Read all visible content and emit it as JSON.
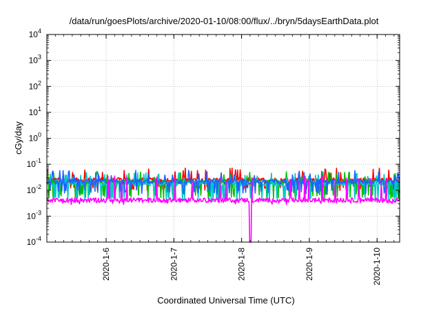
{
  "chart_data": {
    "type": "line",
    "title": "/data/run/goesPlots/archive/2020-01-10/08:00/flux/../bryn/5daysEarthData.plot",
    "xlabel": "Coordinated Universal Time (UTC)",
    "ylabel": "cGy/day",
    "yscale": "log",
    "ylim": [
      0.0001,
      10000
    ],
    "xlim": [
      "2020-01-05T03:00",
      "2020-01-10T08:00"
    ],
    "grid": true,
    "legend": "none",
    "x_ticks": [
      "2020-1-6",
      "2020-1-7",
      "2020-1-8",
      "2020-1-9",
      "2020-1-10"
    ],
    "y_ticks": [
      {
        "value": 0.0001,
        "base": "10",
        "exp": "-4"
      },
      {
        "value": 0.001,
        "base": "10",
        "exp": "-3"
      },
      {
        "value": 0.01,
        "base": "10",
        "exp": "-2"
      },
      {
        "value": 0.1,
        "base": "10",
        "exp": "-1"
      },
      {
        "value": 1,
        "base": "10",
        "exp": "0"
      },
      {
        "value": 10,
        "base": "10",
        "exp": "1"
      },
      {
        "value": 100,
        "base": "10",
        "exp": "2"
      },
      {
        "value": 1000,
        "base": "10",
        "exp": "3"
      },
      {
        "value": 10000,
        "base": "10",
        "exp": "4"
      }
    ],
    "series": [
      {
        "color": "#ff0000",
        "baseline": 0.025,
        "spike_high": 0.06,
        "spike_low": 0.012
      },
      {
        "color": "#00c000",
        "baseline": 0.021,
        "spike_high": 0.045,
        "spike_low": 0.006
      },
      {
        "color": "#00c8c8",
        "baseline": 0.018,
        "spike_high": 0.04,
        "spike_low": 0.0045
      },
      {
        "color": "#2060ff",
        "baseline": 0.022,
        "spike_high": 0.05,
        "spike_low": 0.009
      },
      {
        "color": "#ff00ff",
        "baseline": 0.0042,
        "spike_high": 0.03,
        "spike_low": 0.0035
      }
    ],
    "notable_dropout": {
      "time": "2020-01-08T03:00",
      "series_color": "#ff00ff",
      "value": 0.0001
    }
  }
}
